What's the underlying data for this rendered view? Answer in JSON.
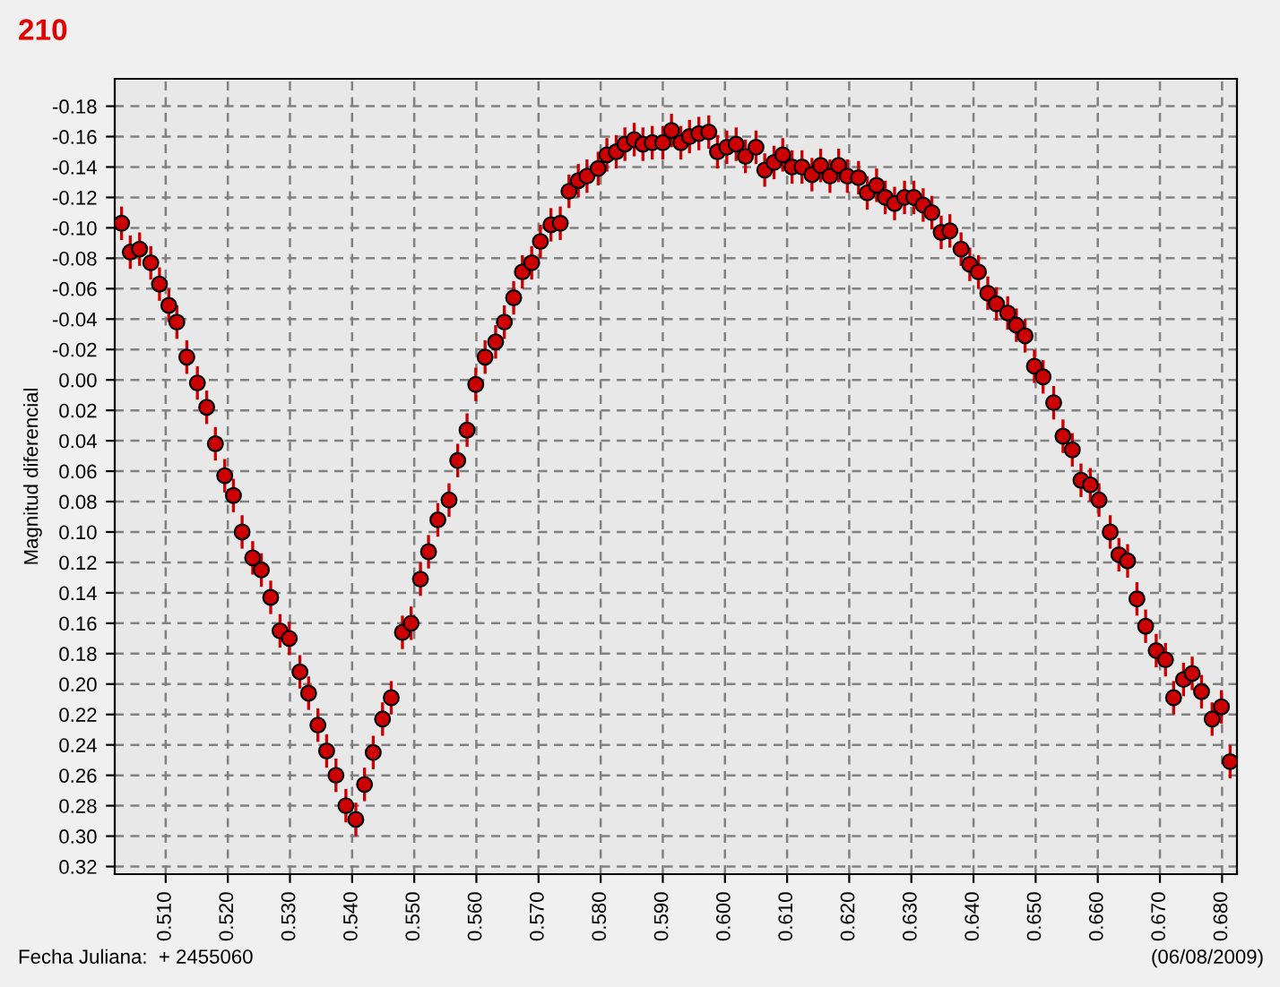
{
  "chart_data": {
    "type": "scatter",
    "title": "210",
    "ylabel": "Magnitud diferencial",
    "annotations": [
      "Fecha Juliana:  + 2455060",
      "(06/08/2009)"
    ],
    "x": [
      0.5029,
      0.5043,
      0.5058,
      0.5076,
      0.509,
      0.5105,
      0.5118,
      0.5134,
      0.5151,
      0.5166,
      0.518,
      0.5195,
      0.5209,
      0.5223,
      0.524,
      0.5254,
      0.5269,
      0.5284,
      0.5299,
      0.5316,
      0.533,
      0.5345,
      0.5359,
      0.5374,
      0.539,
      0.5406,
      0.542,
      0.5434,
      0.5449,
      0.5463,
      0.5481,
      0.5495,
      0.551,
      0.5523,
      0.5538,
      0.5556,
      0.557,
      0.5585,
      0.5599,
      0.5614,
      0.5631,
      0.5645,
      0.566,
      0.5674,
      0.5689,
      0.5703,
      0.572,
      0.5735,
      0.5749,
      0.5764,
      0.5778,
      0.5796,
      0.581,
      0.5825,
      0.5839,
      0.5854,
      0.5868,
      0.5883,
      0.59,
      0.5914,
      0.5929,
      0.5943,
      0.5958,
      0.5974,
      0.5988,
      0.6003,
      0.6018,
      0.6033,
      0.605,
      0.6064,
      0.6079,
      0.6093,
      0.6108,
      0.6124,
      0.614,
      0.6154,
      0.6169,
      0.6183,
      0.6197,
      0.6215,
      0.6229,
      0.6244,
      0.6258,
      0.6273,
      0.6289,
      0.6304,
      0.6319,
      0.6333,
      0.6348,
      0.6362,
      0.638,
      0.6394,
      0.6408,
      0.6423,
      0.6437,
      0.6455,
      0.6469,
      0.6483,
      0.6498,
      0.6512,
      0.6529,
      0.6544,
      0.6559,
      0.6573,
      0.6588,
      0.6602,
      0.662,
      0.6634,
      0.6648,
      0.6663,
      0.6677,
      0.6694,
      0.6709,
      0.6722,
      0.6738,
      0.6752,
      0.6767,
      0.6784,
      0.6799,
      0.6813
    ],
    "series": [
      {
        "color": "#cc0000",
        "values": [
          -0.103,
          -0.084,
          -0.086,
          -0.077,
          -0.063,
          -0.049,
          -0.038,
          -0.015,
          0.002,
          0.018,
          0.042,
          0.063,
          0.076,
          0.1,
          0.117,
          0.125,
          0.143,
          0.165,
          0.17,
          0.192,
          0.206,
          0.227,
          0.244,
          0.26,
          0.28,
          0.289,
          0.266,
          0.245,
          0.223,
          0.209,
          0.166,
          0.16,
          0.131,
          0.113,
          0.092,
          0.079,
          0.053,
          0.033,
          0.003,
          -0.015,
          -0.025,
          -0.038,
          -0.054,
          -0.071,
          -0.077,
          -0.091,
          -0.102,
          -0.103,
          -0.124,
          -0.131,
          -0.134,
          -0.139,
          -0.148,
          -0.15,
          -0.155,
          -0.158,
          -0.155,
          -0.156,
          -0.156,
          -0.164,
          -0.156,
          -0.16,
          -0.162,
          -0.163,
          -0.15,
          -0.153,
          -0.155,
          -0.147,
          -0.153,
          -0.138,
          -0.143,
          -0.148,
          -0.14,
          -0.14,
          -0.135,
          -0.141,
          -0.134,
          -0.141,
          -0.134,
          -0.133,
          -0.123,
          -0.128,
          -0.12,
          -0.116,
          -0.12,
          -0.12,
          -0.115,
          -0.11,
          -0.097,
          -0.098,
          -0.086,
          -0.076,
          -0.071,
          -0.057,
          -0.05,
          -0.044,
          -0.036,
          -0.029,
          -0.009,
          -0.002,
          0.015,
          0.037,
          0.046,
          0.066,
          0.069,
          0.079,
          0.1,
          0.115,
          0.119,
          0.144,
          0.162,
          0.178,
          0.184,
          0.209,
          0.197,
          0.193,
          0.205,
          0.223,
          0.215,
          0.251
        ],
        "errors": [
          0.011,
          0.011,
          0.011,
          0.011,
          0.011,
          0.011,
          0.011,
          0.011,
          0.011,
          0.011,
          0.011,
          0.011,
          0.011,
          0.011,
          0.011,
          0.011,
          0.011,
          0.011,
          0.011,
          0.011,
          0.011,
          0.011,
          0.011,
          0.011,
          0.011,
          0.011,
          0.011,
          0.011,
          0.011,
          0.011,
          0.011,
          0.011,
          0.011,
          0.011,
          0.011,
          0.011,
          0.011,
          0.011,
          0.011,
          0.011,
          0.011,
          0.011,
          0.011,
          0.011,
          0.011,
          0.011,
          0.011,
          0.011,
          0.011,
          0.011,
          0.011,
          0.011,
          0.011,
          0.011,
          0.011,
          0.011,
          0.011,
          0.011,
          0.011,
          0.011,
          0.011,
          0.011,
          0.011,
          0.011,
          0.011,
          0.011,
          0.011,
          0.011,
          0.011,
          0.011,
          0.011,
          0.011,
          0.011,
          0.011,
          0.011,
          0.011,
          0.011,
          0.011,
          0.011,
          0.011,
          0.011,
          0.011,
          0.011,
          0.011,
          0.011,
          0.011,
          0.011,
          0.011,
          0.011,
          0.011,
          0.011,
          0.011,
          0.011,
          0.011,
          0.011,
          0.011,
          0.011,
          0.011,
          0.011,
          0.011,
          0.011,
          0.011,
          0.011,
          0.011,
          0.011,
          0.011,
          0.011,
          0.011,
          0.011,
          0.011,
          0.011,
          0.011,
          0.011,
          0.011,
          0.011,
          0.011,
          0.011,
          0.011,
          0.011,
          0.011
        ]
      }
    ],
    "xlim": [
      0.5018,
      0.6824
    ],
    "ylim": [
      0.325,
      -0.198
    ],
    "xticks": [
      {
        "value": 0.51,
        "label": "0.510"
      },
      {
        "value": 0.52,
        "label": "0.520"
      },
      {
        "value": 0.53,
        "label": "0.530"
      },
      {
        "value": 0.54,
        "label": "0.540"
      },
      {
        "value": 0.55,
        "label": "0.550"
      },
      {
        "value": 0.56,
        "label": "0.560"
      },
      {
        "value": 0.57,
        "label": "0.570"
      },
      {
        "value": 0.58,
        "label": "0.580"
      },
      {
        "value": 0.59,
        "label": "0.590"
      },
      {
        "value": 0.6,
        "label": "0.600"
      },
      {
        "value": 0.61,
        "label": "0.610"
      },
      {
        "value": 0.62,
        "label": "0.620"
      },
      {
        "value": 0.63,
        "label": "0.630"
      },
      {
        "value": 0.64,
        "label": "0.640"
      },
      {
        "value": 0.65,
        "label": "0.650"
      },
      {
        "value": 0.66,
        "label": "0.660"
      },
      {
        "value": 0.67,
        "label": "0.670"
      },
      {
        "value": 0.68,
        "label": "0.680"
      }
    ],
    "yticks": [
      {
        "value": -0.18,
        "label": "-0.18"
      },
      {
        "value": -0.16,
        "label": "-0.16"
      },
      {
        "value": -0.14,
        "label": "-0.14"
      },
      {
        "value": -0.12,
        "label": "-0.12"
      },
      {
        "value": -0.1,
        "label": "-0.10"
      },
      {
        "value": -0.08,
        "label": "-0.08"
      },
      {
        "value": -0.06,
        "label": "-0.06"
      },
      {
        "value": -0.04,
        "label": "-0.04"
      },
      {
        "value": -0.02,
        "label": "-0.02"
      },
      {
        "value": 0,
        "label": "0.00"
      },
      {
        "value": 0.02,
        "label": "0.02"
      },
      {
        "value": 0.04,
        "label": "0.04"
      },
      {
        "value": 0.06,
        "label": "0.06"
      },
      {
        "value": 0.08,
        "label": "0.08"
      },
      {
        "value": 0.1,
        "label": "0.10"
      },
      {
        "value": 0.12,
        "label": "0.12"
      },
      {
        "value": 0.14,
        "label": "0.14"
      },
      {
        "value": 0.16,
        "label": "0.16"
      },
      {
        "value": 0.18,
        "label": "0.18"
      },
      {
        "value": 0.2,
        "label": "0.20"
      },
      {
        "value": 0.22,
        "label": "0.22"
      },
      {
        "value": 0.24,
        "label": "0.24"
      },
      {
        "value": 0.26,
        "label": "0.26"
      },
      {
        "value": 0.28,
        "label": "0.28"
      },
      {
        "value": 0.3,
        "label": "0.30"
      },
      {
        "value": 0.32,
        "label": "0.32"
      }
    ],
    "grid": true,
    "marker": "circle"
  }
}
